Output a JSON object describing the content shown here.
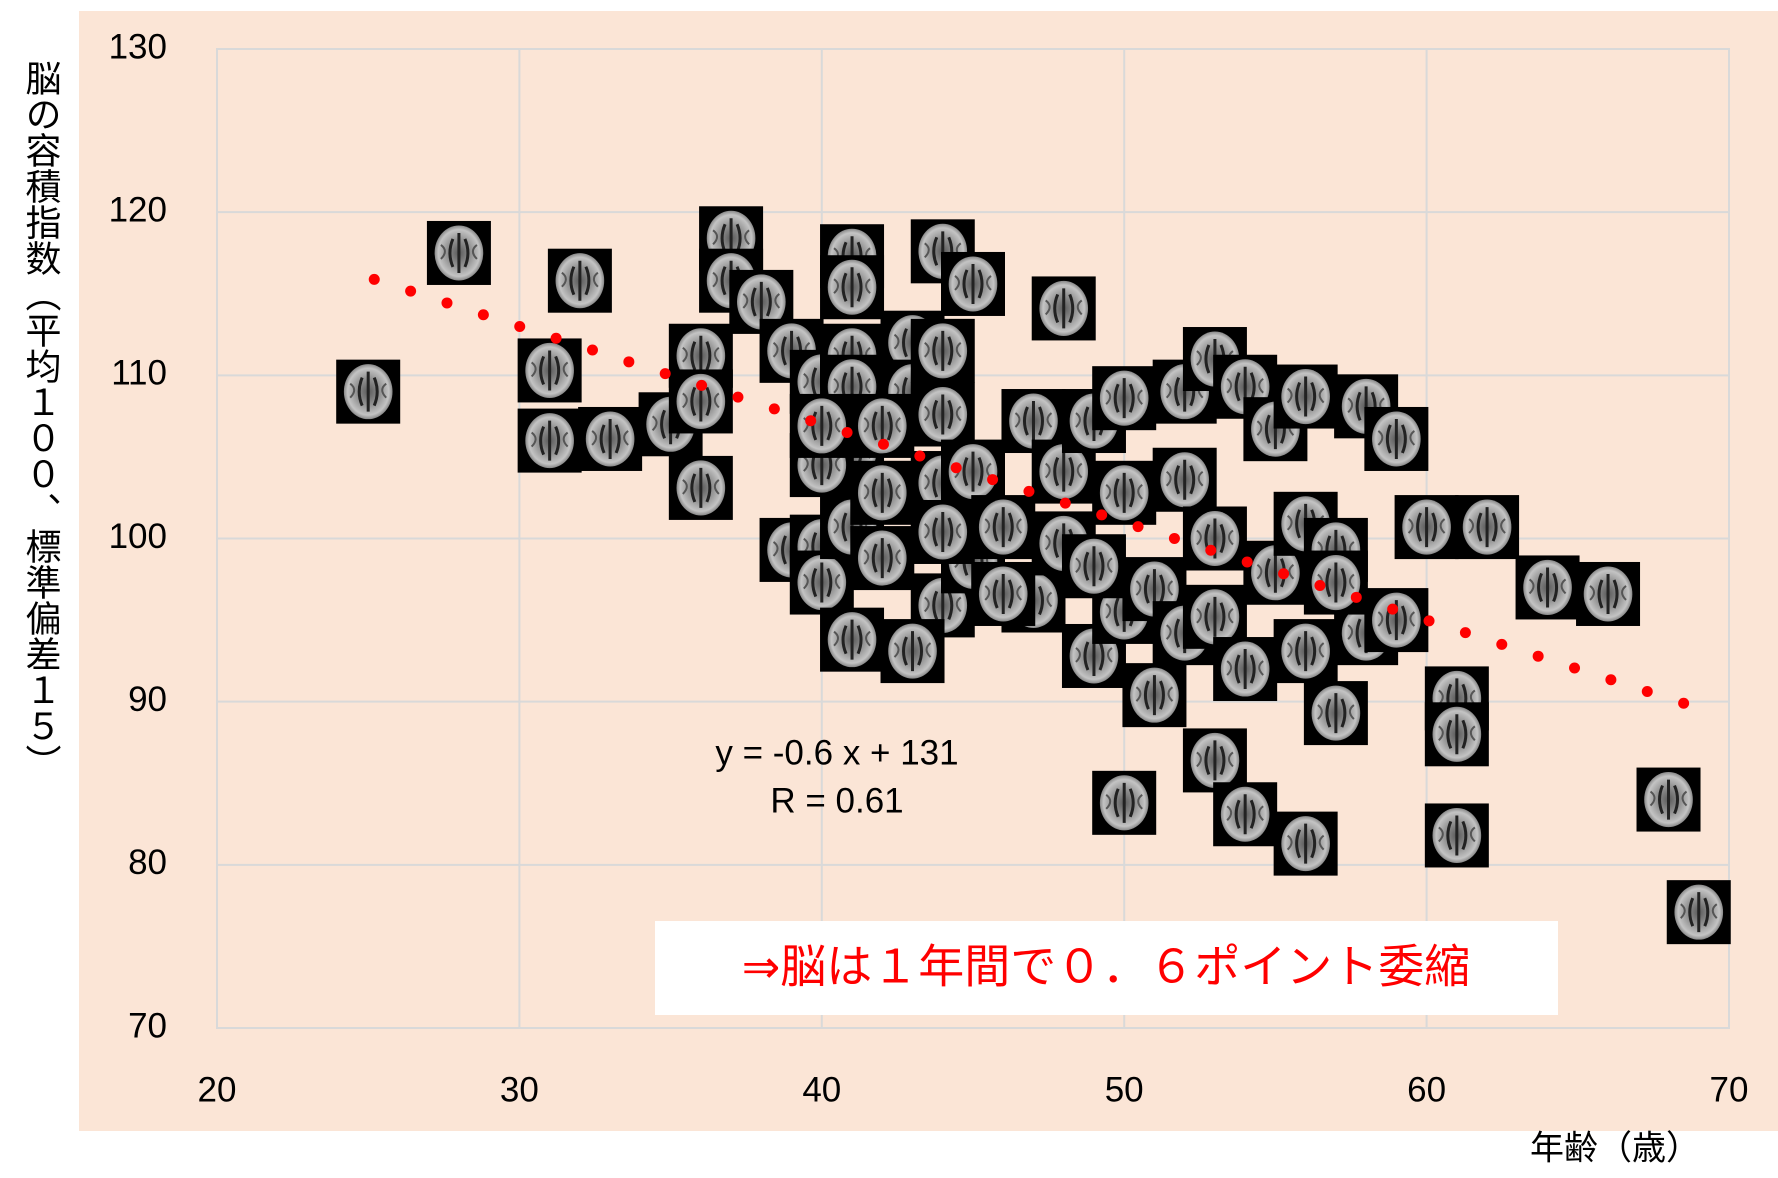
{
  "chart_data": {
    "type": "scatter",
    "y_label": "脳の容積指数（平均１００、標準偏差１５）",
    "x_label": "年齢（歳）",
    "equation": "y = -0.6 x + 131",
    "r_text": "R = 0.61",
    "conclusion": "⇒脳は１年間で０．６ポイント委縮",
    "xlim": [
      20,
      70
    ],
    "xticks": [
      20,
      30,
      40,
      50,
      60,
      70
    ],
    "ylim": [
      70,
      130
    ],
    "yticks": [
      70,
      80,
      90,
      100,
      110,
      120,
      130
    ],
    "grid": true,
    "trendline": {
      "slope": -0.6,
      "intercept": 131,
      "x": [
        25.2,
        68.5
      ],
      "color": "#ff0000"
    },
    "series": [
      {
        "x": [
          25,
          28,
          32,
          31,
          31,
          33,
          35,
          36,
          36,
          36,
          37,
          37,
          38,
          39,
          40,
          41,
          41,
          41,
          41,
          41,
          40,
          39,
          40,
          40,
          41,
          42,
          41,
          42,
          43,
          43,
          44,
          44,
          44,
          44,
          44,
          43,
          45,
          45,
          45,
          46,
          47,
          47,
          48,
          48,
          48,
          49,
          49,
          50,
          50,
          50,
          50,
          51,
          51,
          52,
          52,
          52,
          53,
          53,
          53,
          53,
          54,
          54,
          54,
          55,
          55,
          56,
          56,
          56,
          56,
          57,
          57,
          58,
          58,
          59,
          59,
          60,
          61,
          61,
          61,
          62,
          64,
          66,
          68,
          69,
          57,
          49,
          46,
          40,
          42,
          44
        ],
        "values": [
          109,
          117.5,
          115.8,
          110.3,
          106,
          106.1,
          107,
          111.2,
          108.4,
          103.1,
          118.4,
          115.8,
          114.5,
          111.5,
          109.6,
          117.3,
          115.4,
          111.2,
          109.3,
          105.3,
          104.5,
          99.3,
          99.5,
          97.3,
          100.7,
          98.8,
          93.8,
          102.8,
          112,
          109,
          117.6,
          111.5,
          107.6,
          103.4,
          95.9,
          93.1,
          115.6,
          104.1,
          98.6,
          100.7,
          107.2,
          96.2,
          114.1,
          104.1,
          99.7,
          107.2,
          92.8,
          108.6,
          102.8,
          95.5,
          83.8,
          96.9,
          90.4,
          109,
          103.6,
          94.2,
          111,
          100,
          95.2,
          86.4,
          109.3,
          83.1,
          92,
          106.7,
          97.9,
          108.7,
          100.9,
          93.1,
          81.3,
          99.3,
          89.3,
          108.1,
          94.2,
          106.1,
          95,
          100.7,
          90.2,
          88,
          81.8,
          100.7,
          97,
          96.6,
          84,
          77.1,
          97.3,
          98.3,
          96.6,
          106.9,
          106.9,
          100.4
        ]
      }
    ]
  }
}
